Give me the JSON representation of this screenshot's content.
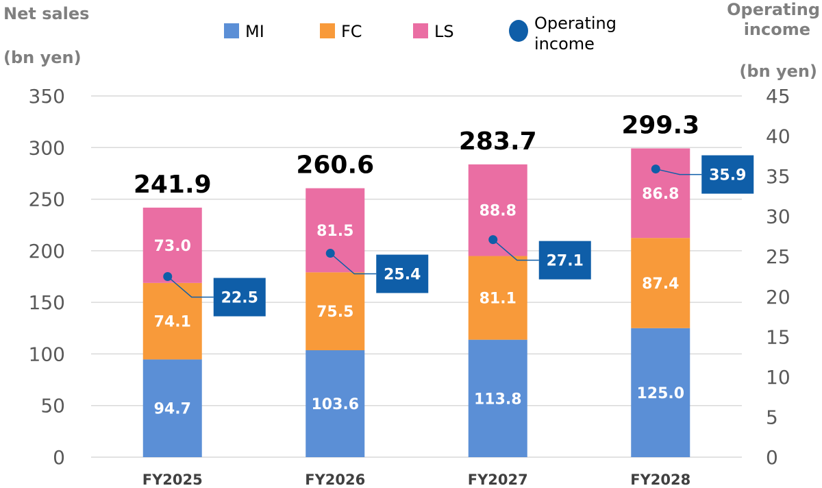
{
  "chart_data": {
    "type": "bar",
    "stacked": true,
    "categories": [
      "FY2025",
      "FY2026",
      "FY2027",
      "FY2028"
    ],
    "series": [
      {
        "name": "MI",
        "values": [
          94.7,
          103.6,
          113.8,
          125.0
        ],
        "color": "#5b8fd6"
      },
      {
        "name": "FC",
        "values": [
          74.1,
          75.5,
          81.1,
          87.4
        ],
        "color": "#f89a3a"
      },
      {
        "name": "LS",
        "values": [
          73.0,
          81.5,
          88.8,
          86.8
        ],
        "color": "#ea6ea3"
      }
    ],
    "totals": [
      241.9,
      260.6,
      283.7,
      299.3
    ],
    "totals_text": [
      "241.9",
      "260.6",
      "283.7",
      "299.3"
    ],
    "value_text": {
      "MI": [
        "94.7",
        "103.6",
        "113.8",
        "125.0"
      ],
      "FC": [
        "74.1",
        "75.5",
        "81.1",
        "87.4"
      ],
      "LS": [
        "73.0",
        "81.5",
        "88.8",
        "86.8"
      ]
    },
    "operating_income": {
      "name_lines": [
        "Operating",
        "income"
      ],
      "values": [
        22.5,
        25.4,
        27.1,
        35.9
      ],
      "labels": [
        "22.5",
        "25.4",
        "27.1",
        "35.9"
      ],
      "color": "#0f5ea8"
    },
    "ylabel_left_lines": [
      "Net sales",
      "(bn yen)"
    ],
    "ylabel_right_lines": [
      "Operating",
      "income",
      "(bn yen)"
    ],
    "ylim_left": [
      0,
      350
    ],
    "yticks_left": [
      "0",
      "50",
      "100",
      "150",
      "200",
      "250",
      "300",
      "350"
    ],
    "ylim_right": [
      0,
      45
    ],
    "yticks_right": [
      "0",
      "5",
      "10",
      "15",
      "20",
      "25",
      "30",
      "35",
      "40",
      "45"
    ],
    "grid": true,
    "legend_position": "top"
  }
}
